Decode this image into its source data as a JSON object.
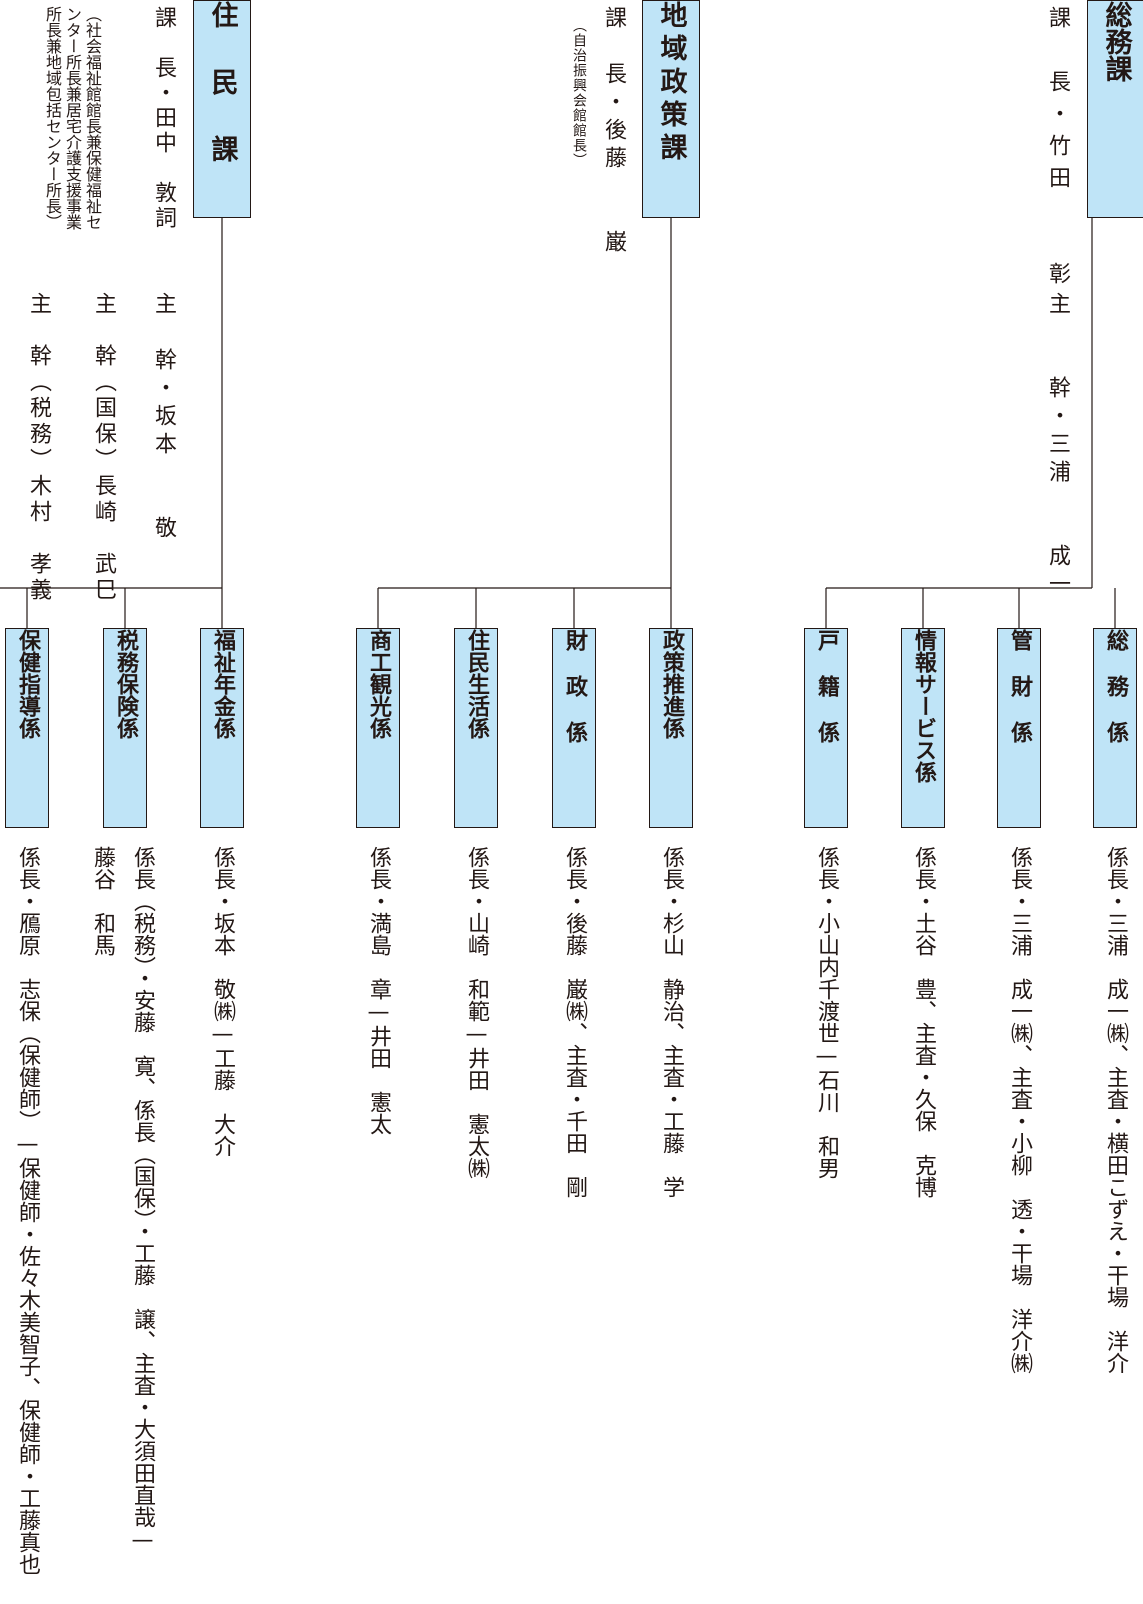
{
  "departments": [
    {
      "name": "総務課",
      "head": "課　長・竹田　　彰",
      "sub": [
        "主　　幹・三浦　　成一"
      ],
      "sections": [
        {
          "name": "総務係",
          "staff": "係長・三浦　成一㈱、主査・横田こずえ・干場　洋介"
        },
        {
          "name": "管財係",
          "staff": "係長・三浦　成一㈱、主査・小柳　透・干場　洋介㈱"
        },
        {
          "name": "情報サービス係",
          "staff": "係長・土谷　豊、主査・久保　克博"
        },
        {
          "name": "戸籍係",
          "staff": "係長・小山内千渡世—石川　和男"
        }
      ]
    },
    {
      "name": "地域政策課",
      "head": "課　長・後藤　　巌",
      "sub": [
        "（自治振興会館館長）"
      ],
      "sections": [
        {
          "name": "政策推進係",
          "staff": "係長・杉山　静治、主査・工藤　学"
        },
        {
          "name": "財政係",
          "staff": "係長・後藤　巌㈱、主査・千田　剛"
        },
        {
          "name": "住民生活係",
          "staff": "係長・山崎　和範—井田　憲太㈱"
        },
        {
          "name": "商工観光係",
          "staff": "係長・満島　章—井田　憲太"
        }
      ]
    },
    {
      "name": "住民課",
      "head": "課　長・田中　敦詞",
      "sub": [
        "（社会福祉館館長兼保健福祉センター所長兼居宅介護支援事業所長兼地域包括センター所長）",
        "主　幹・坂本　　敬",
        "主　幹（国保）長崎　武巳",
        "主　幹（税務）木村　孝義"
      ],
      "sections": [
        {
          "name": "福祉年金係",
          "staff": "係長・坂本　敬㈱—工藤　大介"
        },
        {
          "name": "税務保険係",
          "staff": "係長（税務）・安藤　寛、係長（国保）・工藤　譲、主査・大須田直哉—藤谷　和馬"
        },
        {
          "name": "保健指導係",
          "staff": "係長・鴈原　志保（保健師）—保健師・佐々木美智子、保健師・工藤真也"
        }
      ]
    }
  ]
}
